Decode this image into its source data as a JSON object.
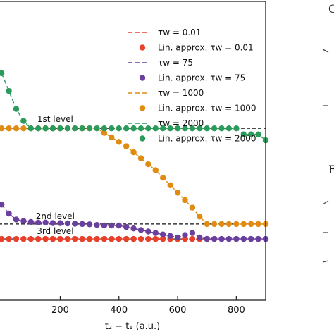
{
  "chart_data": {
    "type": "line",
    "xlabel": "t₂ − t₁ (a.u.)",
    "ylabel": "",
    "xlim": [
      -10,
      900
    ],
    "ylim": [
      0,
      1
    ],
    "xticks": [
      200,
      400,
      600,
      800
    ],
    "levels": [
      {
        "name": "1st level",
        "value": 0.575,
        "x_label": 195
      },
      {
        "name": "2nd level",
        "value": 0.255,
        "x_label": 195
      },
      {
        "name": "3rd level",
        "value": 0.205,
        "x_label": 195
      }
    ],
    "series": [
      {
        "name": "τ_w = 0.01",
        "kind": "line",
        "color": "#e8402a",
        "dash": "6,4",
        "x": [
          -10,
          720
        ],
        "y": [
          0.205,
          0.205
        ]
      },
      {
        "name": "Lin. approx. τ_w = 0.01",
        "kind": "points",
        "color": "#e8402a",
        "x": [
          0,
          25,
          50,
          75,
          100,
          125,
          150,
          175,
          200,
          225,
          250,
          275,
          300,
          325,
          350,
          375,
          400,
          425,
          450,
          475,
          500,
          525,
          550,
          575,
          600,
          625,
          650,
          675,
          700
        ],
        "y": [
          0.205,
          0.205,
          0.205,
          0.205,
          0.205,
          0.205,
          0.205,
          0.205,
          0.205,
          0.205,
          0.205,
          0.205,
          0.205,
          0.205,
          0.205,
          0.205,
          0.205,
          0.205,
          0.205,
          0.205,
          0.205,
          0.205,
          0.205,
          0.205,
          0.205,
          0.205,
          0.205,
          0.205,
          0.205
        ]
      },
      {
        "name": "τ_w = 75",
        "kind": "line",
        "color": "#6b3f9e",
        "dash": "6,4",
        "x": [
          0,
          25,
          50,
          75,
          100,
          125,
          150,
          175,
          200,
          225,
          250,
          275,
          300,
          325,
          350,
          375,
          400,
          425,
          450,
          475,
          500,
          525,
          550,
          575,
          600,
          625,
          650,
          675,
          700,
          725,
          750,
          775,
          800,
          825,
          850,
          875,
          900
        ],
        "y": [
          0.32,
          0.29,
          0.27,
          0.265,
          0.262,
          0.26,
          0.26,
          0.258,
          0.258,
          0.257,
          0.256,
          0.255,
          0.254,
          0.252,
          0.25,
          0.25,
          0.25,
          0.245,
          0.24,
          0.235,
          0.23,
          0.225,
          0.22,
          0.215,
          0.21,
          0.218,
          0.225,
          0.21,
          0.205,
          0.205,
          0.205,
          0.205,
          0.205,
          0.205,
          0.205,
          0.205,
          0.205
        ]
      },
      {
        "name": "Lin. approx. τ_w = 75",
        "kind": "points",
        "color": "#6b3f9e",
        "x": [
          0,
          25,
          50,
          75,
          100,
          125,
          150,
          175,
          200,
          225,
          250,
          275,
          300,
          325,
          350,
          375,
          400,
          425,
          450,
          475,
          500,
          525,
          550,
          575,
          600,
          625,
          650,
          675,
          700,
          725,
          750,
          775,
          800,
          825,
          850,
          875,
          900
        ],
        "y": [
          0.32,
          0.29,
          0.27,
          0.265,
          0.262,
          0.26,
          0.26,
          0.258,
          0.258,
          0.257,
          0.256,
          0.255,
          0.254,
          0.252,
          0.25,
          0.25,
          0.25,
          0.245,
          0.24,
          0.235,
          0.23,
          0.225,
          0.22,
          0.215,
          0.21,
          0.218,
          0.225,
          0.21,
          0.205,
          0.205,
          0.205,
          0.205,
          0.205,
          0.205,
          0.205,
          0.205,
          0.205
        ]
      },
      {
        "name": "τ_w = 1000",
        "kind": "line",
        "color": "#e08b12",
        "dash": "6,4",
        "x": [
          0,
          25,
          50,
          75,
          100,
          125,
          150,
          175,
          200,
          225,
          250,
          275,
          300,
          325,
          350,
          375,
          400,
          425,
          450,
          475,
          500,
          525,
          550,
          575,
          600,
          625,
          650,
          675,
          700,
          725,
          750,
          775,
          800,
          825,
          850,
          875,
          900
        ],
        "y": [
          0.575,
          0.575,
          0.575,
          0.575,
          0.575,
          0.575,
          0.575,
          0.575,
          0.575,
          0.575,
          0.575,
          0.575,
          0.575,
          0.575,
          0.56,
          0.545,
          0.53,
          0.515,
          0.495,
          0.475,
          0.455,
          0.435,
          0.41,
          0.385,
          0.36,
          0.335,
          0.31,
          0.28,
          0.255,
          0.255,
          0.255,
          0.255,
          0.255,
          0.255,
          0.255,
          0.255,
          0.255
        ]
      },
      {
        "name": "Lin. approx. τ_w = 1000",
        "kind": "points",
        "color": "#e08b12",
        "x": [
          0,
          25,
          50,
          75,
          100,
          125,
          150,
          175,
          200,
          225,
          250,
          275,
          300,
          325,
          350,
          375,
          400,
          425,
          450,
          475,
          500,
          525,
          550,
          575,
          600,
          625,
          650,
          675,
          700,
          725,
          750,
          775,
          800,
          825,
          850,
          875,
          900
        ],
        "y": [
          0.575,
          0.575,
          0.575,
          0.575,
          0.575,
          0.575,
          0.575,
          0.575,
          0.575,
          0.575,
          0.575,
          0.575,
          0.575,
          0.575,
          0.56,
          0.545,
          0.53,
          0.515,
          0.495,
          0.475,
          0.455,
          0.435,
          0.41,
          0.385,
          0.36,
          0.335,
          0.31,
          0.28,
          0.255,
          0.255,
          0.255,
          0.255,
          0.255,
          0.255,
          0.255,
          0.255,
          0.255
        ]
      },
      {
        "name": "τ_w = 2000",
        "kind": "line",
        "color": "#2b9a5a",
        "dash": "6,4",
        "x": [
          0,
          25,
          50,
          75,
          100,
          125,
          150,
          175,
          200,
          225,
          250,
          275,
          300,
          325,
          350,
          375,
          400,
          425,
          450,
          475,
          500,
          525,
          550,
          575,
          600,
          625,
          650,
          675,
          700,
          725,
          750,
          775,
          800,
          825,
          850,
          875,
          900
        ],
        "y": [
          0.76,
          0.7,
          0.64,
          0.6,
          0.575,
          0.575,
          0.575,
          0.575,
          0.575,
          0.575,
          0.575,
          0.575,
          0.575,
          0.575,
          0.575,
          0.575,
          0.575,
          0.575,
          0.575,
          0.575,
          0.575,
          0.575,
          0.575,
          0.575,
          0.575,
          0.575,
          0.575,
          0.575,
          0.575,
          0.575,
          0.575,
          0.575,
          0.575,
          0.555,
          0.555,
          0.555,
          0.535
        ]
      },
      {
        "name": "Lin. approx. τ_w = 2000",
        "kind": "points",
        "color": "#2b9a5a",
        "x": [
          0,
          25,
          50,
          75,
          100,
          125,
          150,
          175,
          200,
          225,
          250,
          275,
          300,
          325,
          350,
          375,
          400,
          425,
          450,
          475,
          500,
          525,
          550,
          575,
          600,
          625,
          650,
          675,
          700,
          725,
          750,
          775,
          800,
          825,
          850,
          875,
          900
        ],
        "y": [
          0.76,
          0.7,
          0.64,
          0.6,
          0.575,
          0.575,
          0.575,
          0.575,
          0.575,
          0.575,
          0.575,
          0.575,
          0.575,
          0.575,
          0.575,
          0.575,
          0.575,
          0.575,
          0.575,
          0.575,
          0.575,
          0.575,
          0.575,
          0.575,
          0.575,
          0.575,
          0.575,
          0.575,
          0.575,
          0.575,
          0.575,
          0.575,
          0.575,
          0.555,
          0.555,
          0.555,
          0.535
        ]
      }
    ],
    "legend": {
      "placement": "top-right",
      "entries": [
        {
          "label": "τw = 0.01",
          "kind": "line",
          "color": "#e8402a"
        },
        {
          "label": "Lin. approx. τw = 0.01",
          "kind": "point",
          "color": "#e8402a"
        },
        {
          "label": "τw = 75",
          "kind": "line",
          "color": "#6b3f9e"
        },
        {
          "label": "Lin. approx. τw = 75",
          "kind": "point",
          "color": "#6b3f9e"
        },
        {
          "label": "τw = 1000",
          "kind": "line",
          "color": "#e08b12"
        },
        {
          "label": "Lin. approx. τw = 1000",
          "kind": "point",
          "color": "#e08b12"
        },
        {
          "label": "τw = 2000",
          "kind": "line",
          "color": "#2b9a5a"
        },
        {
          "label": "Lin. approx. τw = 2000",
          "kind": "point",
          "color": "#2b9a5a"
        }
      ]
    },
    "grid": false,
    "edge_glyphs": [
      "C",
      "E"
    ]
  }
}
